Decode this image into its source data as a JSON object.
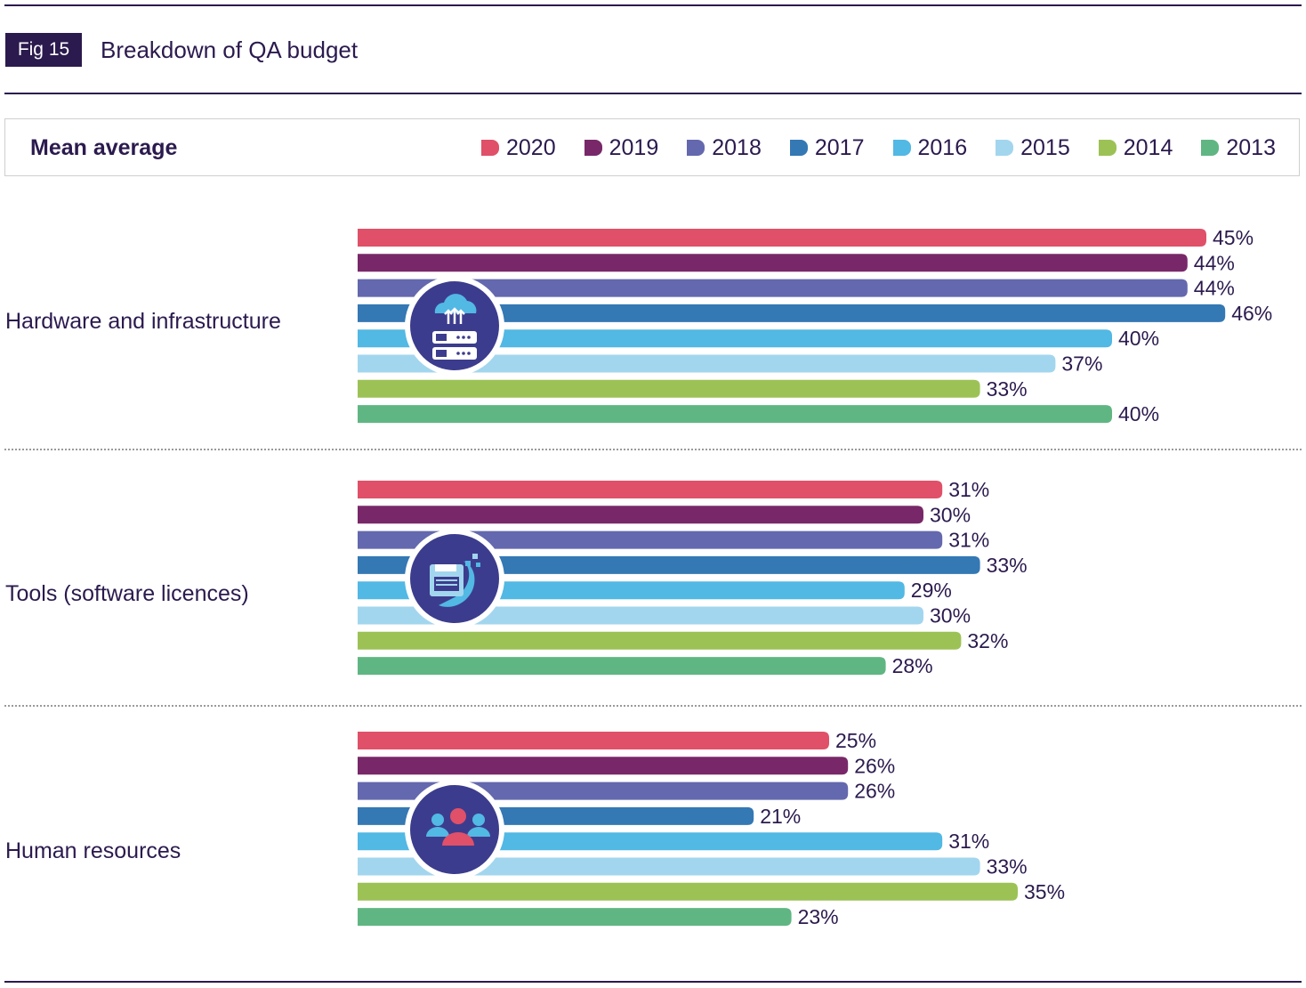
{
  "header": {
    "fig_tag": "Fig 15",
    "title": "Breakdown of QA budget"
  },
  "legend": {
    "label": "Mean average",
    "items": [
      {
        "name": "2020",
        "color": "#e05068"
      },
      {
        "name": "2019",
        "color": "#782868"
      },
      {
        "name": "2018",
        "color": "#6468ae"
      },
      {
        "name": "2017",
        "color": "#3478b4"
      },
      {
        "name": "2016",
        "color": "#52b8e4"
      },
      {
        "name": "2015",
        "color": "#a2d6ee"
      },
      {
        "name": "2014",
        "color": "#9cc256"
      },
      {
        "name": "2013",
        "color": "#60b682"
      }
    ]
  },
  "icons": [
    "cloud-server-icon",
    "software-tools-icon",
    "people-icon"
  ],
  "chart_data": {
    "type": "bar",
    "orientation": "horizontal",
    "title": "Breakdown of QA budget",
    "categories": [
      "Hardware and infrastructure",
      "Tools (software licences)",
      "Human resources"
    ],
    "unit": "%",
    "series": [
      {
        "name": "2020",
        "color": "#e05068",
        "values": [
          45,
          31,
          25
        ],
        "labels": [
          "45%",
          "31%",
          "25%"
        ]
      },
      {
        "name": "2019",
        "color": "#782868",
        "values": [
          44,
          30,
          26
        ],
        "labels": [
          "44%",
          "30%",
          "26%"
        ]
      },
      {
        "name": "2018",
        "color": "#6468ae",
        "values": [
          44,
          31,
          26
        ],
        "labels": [
          "44%",
          "31%",
          "26%"
        ]
      },
      {
        "name": "2017",
        "color": "#3478b4",
        "values": [
          46,
          33,
          21
        ],
        "labels": [
          "46%",
          "33%",
          "21%"
        ]
      },
      {
        "name": "2016",
        "color": "#52b8e4",
        "values": [
          40,
          29,
          31
        ],
        "labels": [
          "40%",
          "29%",
          "31%"
        ]
      },
      {
        "name": "2015",
        "color": "#a2d6ee",
        "values": [
          37,
          30,
          33
        ],
        "labels": [
          "37%",
          "30%",
          "33%"
        ]
      },
      {
        "name": "2014",
        "color": "#9cc256",
        "values": [
          33,
          32,
          35
        ],
        "labels": [
          "33%",
          "32%",
          "35%"
        ]
      },
      {
        "name": "2013",
        "color": "#60b682",
        "values": [
          40,
          28,
          23
        ],
        "labels": [
          "40%",
          "28%",
          "23%"
        ]
      }
    ]
  }
}
